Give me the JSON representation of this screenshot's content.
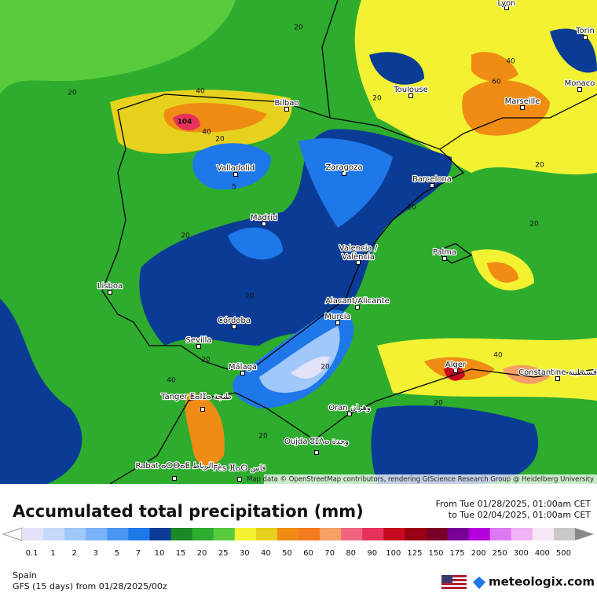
{
  "map": {
    "cities": [
      "Lyon",
      "Torin",
      "Monaco",
      "Marseille",
      "Toulouse",
      "Bilbao",
      "Valladolid",
      "Zaragoza",
      "Barcelona",
      "Madrid",
      "Valencia /",
      "València",
      "Palma",
      "Lisboa",
      "Alacant/Alicante",
      "Murcia",
      "Córdoba",
      "Sevilla",
      "Málaga",
      "Alger",
      "Constantine قسنطينة",
      "Tanger ⵟⴰⵏⵊⴰ طنجة",
      "Oran وهران",
      "Oujda ⵓⵊⴷⴰ وجدة",
      "Rabat ⴰⵔⴱⴰⵟ الرباط",
      "Fès ⴼⴰⵙ فاس"
    ],
    "contour_labels": [
      "104",
      "40",
      "40",
      "20",
      "20",
      "20",
      "40",
      "60",
      "20",
      "20",
      "5",
      "20",
      "20",
      "20",
      "20",
      "40",
      "20",
      "20",
      "20",
      "40",
      "20"
    ],
    "attribution": "Map data © OpenStreetMap contributors, rendering GIScience Research Group @ Heidelberg University"
  },
  "legend": {
    "title": "Accumulated total precipitation (mm)",
    "from": "From Tue 01/28/2025, 01:00am CET",
    "to": "to Tue 02/04/2025, 01:00am CET",
    "scale": [
      {
        "label": "0.1",
        "color": "#e2e2f8"
      },
      {
        "label": "1",
        "color": "#c4dafa"
      },
      {
        "label": "2",
        "color": "#a0c8fa"
      },
      {
        "label": "3",
        "color": "#78b2f8"
      },
      {
        "label": "5",
        "color": "#4a96f2"
      },
      {
        "label": "7",
        "color": "#1e78ea"
      },
      {
        "label": "10",
        "color": "#0a3c96"
      },
      {
        "label": "15",
        "color": "#1a8a28"
      },
      {
        "label": "20",
        "color": "#2eac2e"
      },
      {
        "label": "25",
        "color": "#58cc3c"
      },
      {
        "label": "30",
        "color": "#f2f232"
      },
      {
        "label": "40",
        "color": "#e6d21e"
      },
      {
        "label": "50",
        "color": "#f08c14"
      },
      {
        "label": "60",
        "color": "#f47a1e"
      },
      {
        "label": "70",
        "color": "#f5a064"
      },
      {
        "label": "80",
        "color": "#f06482"
      },
      {
        "label": "90",
        "color": "#e6325a"
      },
      {
        "label": "100",
        "color": "#c80a1e"
      },
      {
        "label": "125",
        "color": "#9a0014"
      },
      {
        "label": "150",
        "color": "#780028"
      },
      {
        "label": "175",
        "color": "#780096"
      },
      {
        "label": "200",
        "color": "#b400dc"
      },
      {
        "label": "250",
        "color": "#dc78f0"
      },
      {
        "label": "300",
        "color": "#f0b4f5"
      },
      {
        "label": "400",
        "color": "#f6e8f6"
      },
      {
        "label": "500",
        "color": "#c8c8c8"
      }
    ]
  },
  "footer": {
    "region": "Spain",
    "model": "GFS (15 days) from 01/28/2025/00z",
    "brand": "meteologix.com"
  }
}
